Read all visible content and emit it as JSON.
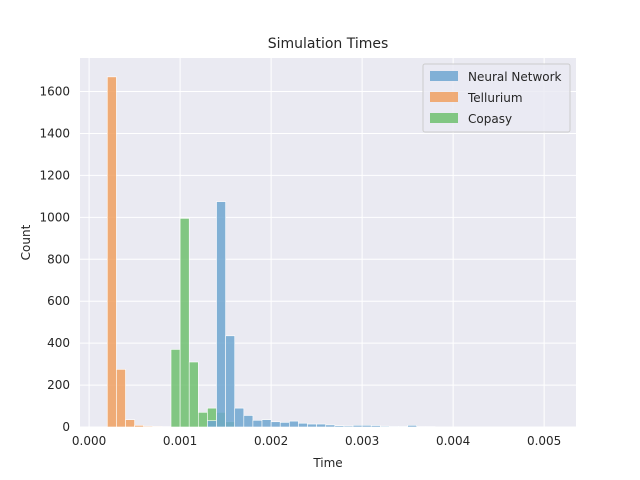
{
  "chart_data": {
    "type": "bar",
    "subtype": "histogram",
    "title": "Simulation Times",
    "xlabel": "Time",
    "ylabel": "Count",
    "xlim": [
      -0.0001,
      0.00535
    ],
    "ylim": [
      0,
      1760
    ],
    "xticks": [
      0.0,
      0.001,
      0.002,
      0.003,
      0.004,
      0.005
    ],
    "xtick_labels": [
      "0.000",
      "0.001",
      "0.002",
      "0.003",
      "0.004",
      "0.005"
    ],
    "yticks": [
      0,
      200,
      400,
      600,
      800,
      1000,
      1200,
      1400,
      1600
    ],
    "ytick_labels": [
      "0",
      "200",
      "400",
      "600",
      "800",
      "1000",
      "1200",
      "1400",
      "1600"
    ],
    "grid": true,
    "legend_position": "top-right",
    "bin_width": 0.0001,
    "series": [
      {
        "name": "Tellurium",
        "color": "#f0a060",
        "bins": [
          {
            "start": 0.0002,
            "count": 1670
          },
          {
            "start": 0.0003,
            "count": 275
          },
          {
            "start": 0.0004,
            "count": 35
          },
          {
            "start": 0.0005,
            "count": 8
          },
          {
            "start": 0.0006,
            "count": 4
          },
          {
            "start": 0.0007,
            "count": 3
          },
          {
            "start": 0.0008,
            "count": 2
          }
        ]
      },
      {
        "name": "Copasy",
        "color": "#6fbf6f",
        "bins": [
          {
            "start": 0.0009,
            "count": 370
          },
          {
            "start": 0.001,
            "count": 995
          },
          {
            "start": 0.0011,
            "count": 310
          },
          {
            "start": 0.0012,
            "count": 70
          },
          {
            "start": 0.0013,
            "count": 90
          },
          {
            "start": 0.0014,
            "count": 70
          },
          {
            "start": 0.0015,
            "count": 25
          }
        ]
      },
      {
        "name": "Neural Network",
        "color": "#6ea6d0",
        "bins": [
          {
            "start": 0.0013,
            "count": 30
          },
          {
            "start": 0.0014,
            "count": 1075
          },
          {
            "start": 0.0015,
            "count": 435
          },
          {
            "start": 0.0016,
            "count": 90
          },
          {
            "start": 0.0017,
            "count": 55
          },
          {
            "start": 0.0018,
            "count": 32
          },
          {
            "start": 0.0019,
            "count": 35
          },
          {
            "start": 0.002,
            "count": 25
          },
          {
            "start": 0.0021,
            "count": 22
          },
          {
            "start": 0.0022,
            "count": 28
          },
          {
            "start": 0.0023,
            "count": 18
          },
          {
            "start": 0.0024,
            "count": 14
          },
          {
            "start": 0.0025,
            "count": 14
          },
          {
            "start": 0.0026,
            "count": 10
          },
          {
            "start": 0.0027,
            "count": 6
          },
          {
            "start": 0.0028,
            "count": 5
          },
          {
            "start": 0.0029,
            "count": 8
          },
          {
            "start": 0.003,
            "count": 8
          },
          {
            "start": 0.0031,
            "count": 7
          },
          {
            "start": 0.0032,
            "count": 4
          },
          {
            "start": 0.0033,
            "count": 3
          },
          {
            "start": 0.0034,
            "count": 3
          },
          {
            "start": 0.0035,
            "count": 8
          },
          {
            "start": 0.0036,
            "count": 2
          },
          {
            "start": 0.0037,
            "count": 2
          },
          {
            "start": 0.0038,
            "count": 1
          },
          {
            "start": 0.0039,
            "count": 1
          },
          {
            "start": 0.004,
            "count": 1
          },
          {
            "start": 0.0041,
            "count": 1
          },
          {
            "start": 0.0043,
            "count": 1
          },
          {
            "start": 0.0045,
            "count": 1
          },
          {
            "start": 0.0048,
            "count": 1
          },
          {
            "start": 0.0052,
            "count": 1
          }
        ]
      }
    ],
    "legend": [
      "Neural Network",
      "Tellurium",
      "Copasy"
    ]
  }
}
